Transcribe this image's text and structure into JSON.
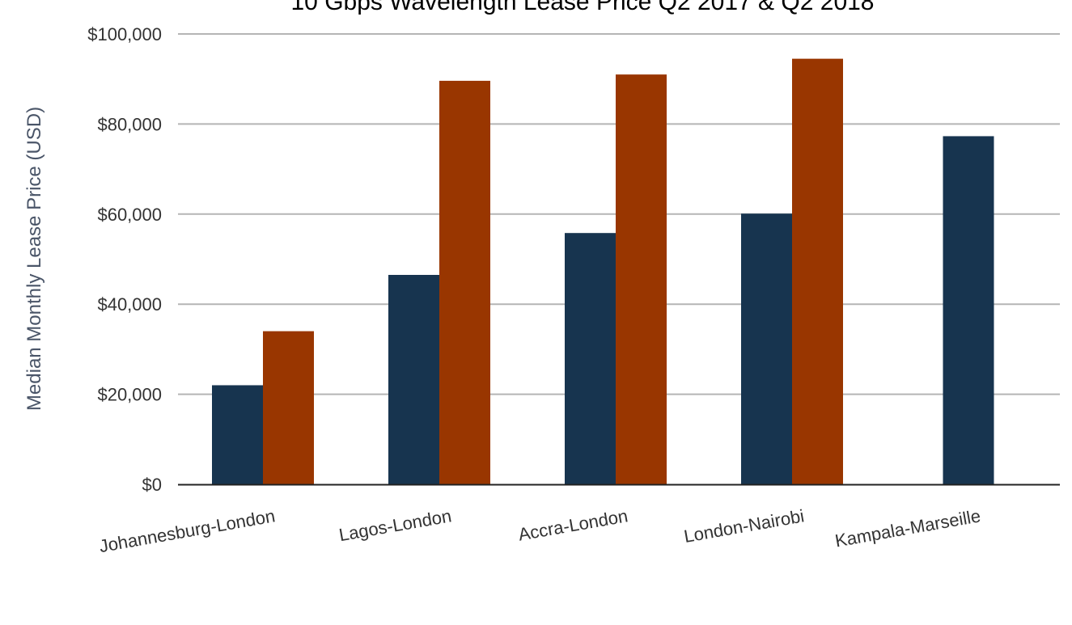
{
  "chart_data": {
    "type": "bar",
    "title": "10 Gbps Wavelength Lease Price Q2 2017 & Q2 2018",
    "xlabel": "",
    "ylabel": "Median Monthly Lease Price (USD)",
    "ylim": [
      0,
      100000
    ],
    "yticks": [
      0,
      20000,
      40000,
      60000,
      80000,
      100000
    ],
    "ytick_labels": [
      "$0",
      "$20,000",
      "$40,000",
      "$60,000",
      "$80,000",
      "$100,000"
    ],
    "grid": true,
    "categories": [
      "Johannesburg-London",
      "Lagos-London",
      "Accra-London",
      "London-Nairobi",
      "Kampala-Marseille"
    ],
    "series": [
      {
        "values": [
          22000,
          46500,
          55800,
          60100,
          77300
        ]
      },
      {
        "values": [
          34000,
          89600,
          91000,
          94500,
          null
        ]
      }
    ],
    "colors": [
      "#17344f",
      "#993600"
    ]
  }
}
